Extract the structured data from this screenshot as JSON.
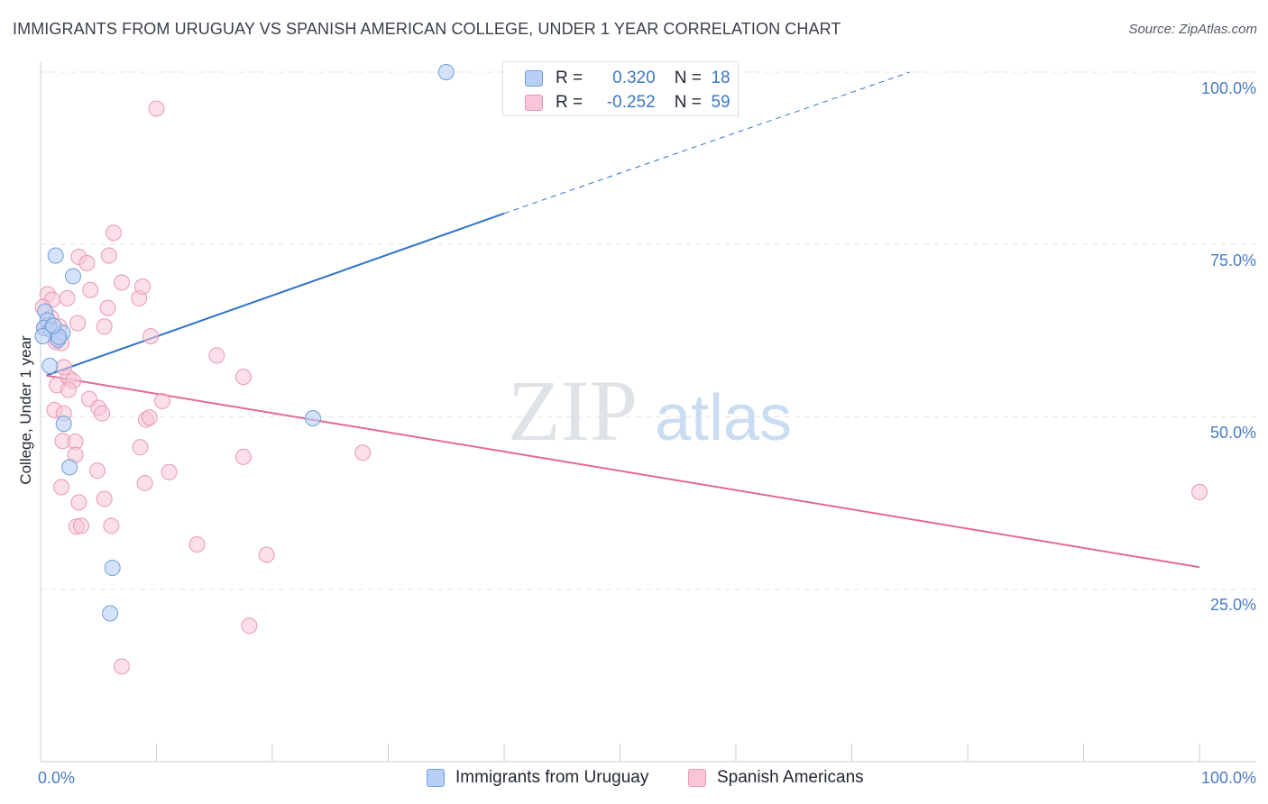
{
  "title": "IMMIGRANTS FROM URUGUAY VS SPANISH AMERICAN COLLEGE, UNDER 1 YEAR CORRELATION CHART",
  "source": "Source: ZipAtlas.com",
  "watermark": {
    "zip": "ZIP",
    "atlas": "atlas"
  },
  "colors": {
    "blue_fill": "#b8d0f5",
    "blue_stroke": "#6f9ed8",
    "blue_line": "#2f72c8",
    "pink_fill": "#f8c6d6",
    "pink_stroke": "#e898b4",
    "pink_line": "#e4689a",
    "tick_text": "#4a7cc0",
    "grid": "#e3e6ea"
  },
  "legend": {
    "blue": {
      "r_label": "R =",
      "r_value": "0.320",
      "n_label": "N =",
      "n_value": "18"
    },
    "pink": {
      "r_label": "R =",
      "r_value": "-0.252",
      "n_label": "N =",
      "n_value": "59"
    }
  },
  "chart_data": {
    "type": "scatter",
    "title": "IMMIGRANTS FROM URUGUAY VS SPANISH AMERICAN COLLEGE, UNDER 1 YEAR CORRELATION CHART",
    "xlabel": "",
    "ylabel": "College, Under 1 year",
    "xlim": [
      0,
      100
    ],
    "ylim": [
      0,
      102
    ],
    "x_tick_labels": [
      "0.0%",
      "100.0%"
    ],
    "y_ticks": [
      25,
      50,
      75,
      100
    ],
    "y_tick_labels": [
      "25.0%",
      "50.0%",
      "75.0%",
      "100.0%"
    ],
    "grid": true,
    "legend_position": "bottom-center",
    "series": [
      {
        "name": "Immigrants from Uruguay",
        "color": "blue",
        "points": [
          [
            35.0,
            100.0
          ],
          [
            1.3,
            73.4
          ],
          [
            2.8,
            70.4
          ],
          [
            0.4,
            65.3
          ],
          [
            0.6,
            64.0
          ],
          [
            0.3,
            62.9
          ],
          [
            0.9,
            62.6
          ],
          [
            1.9,
            62.2
          ],
          [
            0.2,
            61.7
          ],
          [
            1.5,
            61.2
          ],
          [
            1.6,
            61.6
          ],
          [
            0.8,
            57.4
          ],
          [
            2.0,
            49.0
          ],
          [
            23.5,
            49.8
          ],
          [
            2.5,
            42.7
          ],
          [
            6.2,
            28.1
          ],
          [
            6.0,
            21.5
          ],
          [
            1.1,
            63.2
          ]
        ],
        "trendline": {
          "x": [
            0.5,
            40.0
          ],
          "y": [
            56.0,
            79.5
          ],
          "dashed_to": [
            75.0,
            100.0
          ]
        }
      },
      {
        "name": "Spanish Americans",
        "color": "pink",
        "points": [
          [
            10.0,
            94.7
          ],
          [
            6.3,
            76.7
          ],
          [
            3.3,
            73.2
          ],
          [
            4.0,
            72.3
          ],
          [
            5.9,
            73.4
          ],
          [
            0.6,
            67.8
          ],
          [
            1.0,
            67.0
          ],
          [
            2.3,
            67.2
          ],
          [
            4.3,
            68.4
          ],
          [
            7.0,
            69.5
          ],
          [
            8.5,
            67.2
          ],
          [
            8.8,
            68.9
          ],
          [
            5.8,
            65.8
          ],
          [
            0.2,
            65.9
          ],
          [
            0.9,
            64.4
          ],
          [
            0.4,
            62.9
          ],
          [
            1.6,
            63.1
          ],
          [
            3.2,
            63.6
          ],
          [
            5.5,
            63.1
          ],
          [
            1.8,
            60.7
          ],
          [
            1.5,
            61.5
          ],
          [
            9.5,
            61.7
          ],
          [
            15.2,
            58.9
          ],
          [
            17.5,
            55.8
          ],
          [
            1.4,
            54.6
          ],
          [
            2.4,
            55.7
          ],
          [
            2.8,
            55.2
          ],
          [
            2.4,
            53.9
          ],
          [
            4.2,
            52.6
          ],
          [
            5.0,
            51.3
          ],
          [
            1.2,
            51.0
          ],
          [
            2.0,
            50.5
          ],
          [
            5.3,
            50.5
          ],
          [
            10.5,
            52.3
          ],
          [
            9.1,
            49.6
          ],
          [
            9.4,
            49.9
          ],
          [
            1.9,
            46.5
          ],
          [
            3.0,
            46.4
          ],
          [
            8.6,
            45.6
          ],
          [
            27.8,
            44.8
          ],
          [
            17.5,
            44.2
          ],
          [
            3.0,
            44.5
          ],
          [
            4.9,
            42.2
          ],
          [
            11.1,
            42.0
          ],
          [
            9.0,
            40.4
          ],
          [
            1.8,
            39.8
          ],
          [
            3.3,
            37.6
          ],
          [
            5.5,
            38.1
          ],
          [
            100.0,
            39.1
          ],
          [
            3.1,
            34.1
          ],
          [
            6.1,
            34.2
          ],
          [
            3.5,
            34.2
          ],
          [
            13.5,
            31.5
          ],
          [
            19.5,
            30.0
          ],
          [
            18.0,
            19.7
          ],
          [
            7.0,
            13.8
          ],
          [
            0.7,
            63.4
          ],
          [
            1.3,
            60.9
          ],
          [
            2.0,
            57.2
          ]
        ],
        "trendline": {
          "x": [
            0.5,
            100.0
          ],
          "y": [
            56.0,
            28.2
          ]
        }
      }
    ]
  },
  "bottom_legend": {
    "blue_label": "Immigrants from Uruguay",
    "pink_label": "Spanish Americans"
  }
}
